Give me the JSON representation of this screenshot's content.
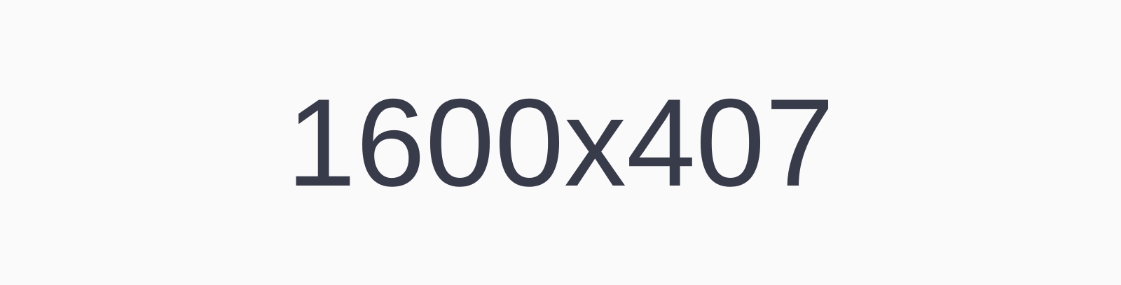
{
  "placeholder": {
    "dimension_text": "1600x407",
    "background_color": "#fafafa",
    "text_color": "#383b49"
  }
}
